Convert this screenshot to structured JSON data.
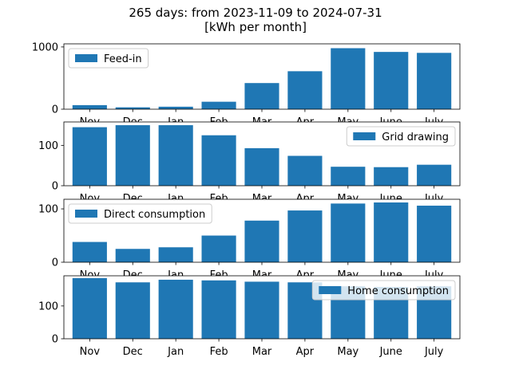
{
  "title_line1": "265 days: from 2023-11-09 to 2024-07-31",
  "title_line2": "[kWh per month]",
  "colors": {
    "bar": "#1f77b4"
  },
  "chart_data": {
    "type": "bar",
    "categories": [
      "Nov",
      "Dec",
      "Jan",
      "Feb",
      "Mar",
      "Apr",
      "May",
      "June",
      "July"
    ],
    "series": [
      {
        "name": "Feed-in",
        "values": [
          65,
          30,
          40,
          120,
          420,
          610,
          980,
          920,
          905
        ],
        "ylim": [
          0,
          1050
        ],
        "yticks": [
          0,
          1000
        ],
        "legend": "top-left"
      },
      {
        "name": "Grid drawing",
        "values": [
          145,
          150,
          150,
          125,
          93,
          74,
          47,
          46,
          52
        ],
        "ylim": [
          0,
          158
        ],
        "yticks": [
          0,
          100
        ],
        "legend": "top-right"
      },
      {
        "name": "Direct consumption",
        "values": [
          38,
          25,
          28,
          50,
          78,
          97,
          110,
          112,
          106
        ],
        "ylim": [
          0,
          118
        ],
        "yticks": [
          0,
          100
        ],
        "legend": "top-left"
      },
      {
        "name": "Home consumption",
        "values": [
          185,
          172,
          180,
          178,
          174,
          172,
          160,
          158,
          160
        ],
        "ylim": [
          0,
          192
        ],
        "yticks": [
          0,
          100
        ],
        "legend": "top-right"
      }
    ]
  }
}
